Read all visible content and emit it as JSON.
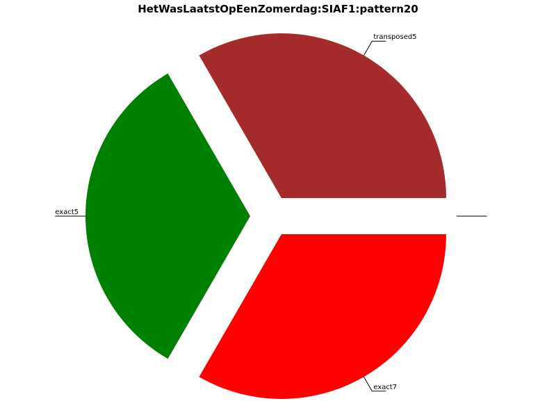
{
  "chart_data": {
    "type": "pie",
    "title": "HetWasLaatstOpEenZomerdag:SIAF1:pattern20",
    "slices": [
      {
        "label": "",
        "value": 0,
        "color": "#ffffff"
      },
      {
        "label": "transposed5",
        "value": 1,
        "color": "#a52a2a"
      },
      {
        "label": "exact5",
        "value": 1,
        "color": "#008000"
      },
      {
        "label": "exact7",
        "value": 1,
        "color": "#ff0000"
      }
    ],
    "legend": "none",
    "grid": false
  }
}
